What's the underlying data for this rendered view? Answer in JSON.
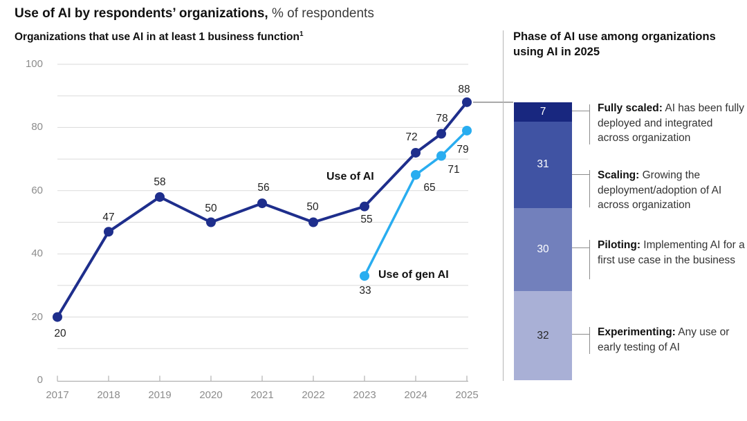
{
  "page_title": {
    "bold": "Use of AI by respondents’ organizations,",
    "regular": "% of respondents"
  },
  "left_chart": {
    "subtitle": "Organizations that use AI in at least 1 business function",
    "footnote_mark": "1"
  },
  "right_panel": {
    "header": "Phase of AI use among organizations using AI in 2025"
  },
  "chart_data": [
    {
      "type": "line",
      "title": "Organizations that use AI in at least 1 business function",
      "unit": "% of respondents",
      "x_ticks": [
        2017,
        2018,
        2019,
        2020,
        2021,
        2022,
        2023,
        2024,
        2025
      ],
      "y_ticks": [
        0,
        20,
        40,
        60,
        80,
        100
      ],
      "grid_values": [
        10,
        20,
        30,
        40,
        50,
        60,
        70,
        80,
        90,
        100
      ],
      "ylim": [
        0,
        100
      ],
      "grid": "horizontal",
      "legend_position": "inline-annotations",
      "series": [
        {
          "name": "Use of AI",
          "color": "#1E2E8C",
          "points": [
            {
              "x": 2017,
              "y": 20,
              "dx": 4,
              "dy": 24
            },
            {
              "x": 2018,
              "y": 47,
              "dx": 0,
              "dy": -20
            },
            {
              "x": 2019,
              "y": 58,
              "dx": 0,
              "dy": -21
            },
            {
              "x": 2020,
              "y": 50,
              "dx": 0,
              "dy": -20
            },
            {
              "x": 2021,
              "y": 56,
              "dx": 2,
              "dy": -22
            },
            {
              "x": 2022,
              "y": 50,
              "dx": -1,
              "dy": -22
            },
            {
              "x": 2023,
              "y": 55,
              "dx": 3,
              "dy": 19
            },
            {
              "x": 2024,
              "y": 72,
              "dx": -6,
              "dy": -22
            },
            {
              "x": 2024.5,
              "y": 78,
              "dx": 1,
              "dy": -22
            },
            {
              "x": 2025,
              "y": 88,
              "dx": -4,
              "dy": -18
            }
          ]
        },
        {
          "name": "Use of gen AI",
          "color": "#29ADF0",
          "points": [
            {
              "x": 2023,
              "y": 33,
              "dx": 1,
              "dy": 22
            },
            {
              "x": 2024,
              "y": 65,
              "dx": 20,
              "dy": 19
            },
            {
              "x": 2024.5,
              "y": 71,
              "dx": 18,
              "dy": 20
            },
            {
              "x": 2025,
              "y": 79,
              "dx": -6,
              "dy": 28
            }
          ]
        }
      ]
    },
    {
      "type": "bar",
      "stacked": true,
      "title": "Phase of AI use among organizations using AI in 2025",
      "total": 100,
      "segments": [
        {
          "label": "Fully scaled",
          "value": 7,
          "color": "#18277F",
          "value_color": "#ffffff",
          "description": "AI has been fully deployed and integrated across organization"
        },
        {
          "label": "Scaling",
          "value": 31,
          "color": "#4053A3",
          "value_color": "#ffffff",
          "description": "Growing the deployment/adoption of AI across organization"
        },
        {
          "label": "Piloting",
          "value": 30,
          "color": "#7280BC",
          "value_color": "#ffffff",
          "description": "Implementing AI for a first use case in the business"
        },
        {
          "label": "Experimenting",
          "value": 32,
          "color": "#A9B0D6",
          "value_color": "#262626",
          "description": "Any use or early testing of AI"
        }
      ]
    }
  ],
  "colors": {
    "use_of_ai_line": "#1E2E8C",
    "use_of_gen_ai_line": "#29ADF0",
    "gridline": "#dadada",
    "axis": "#b0b0b0",
    "axis_text": "#8c8c8c",
    "connector": "#8c8c8c"
  }
}
